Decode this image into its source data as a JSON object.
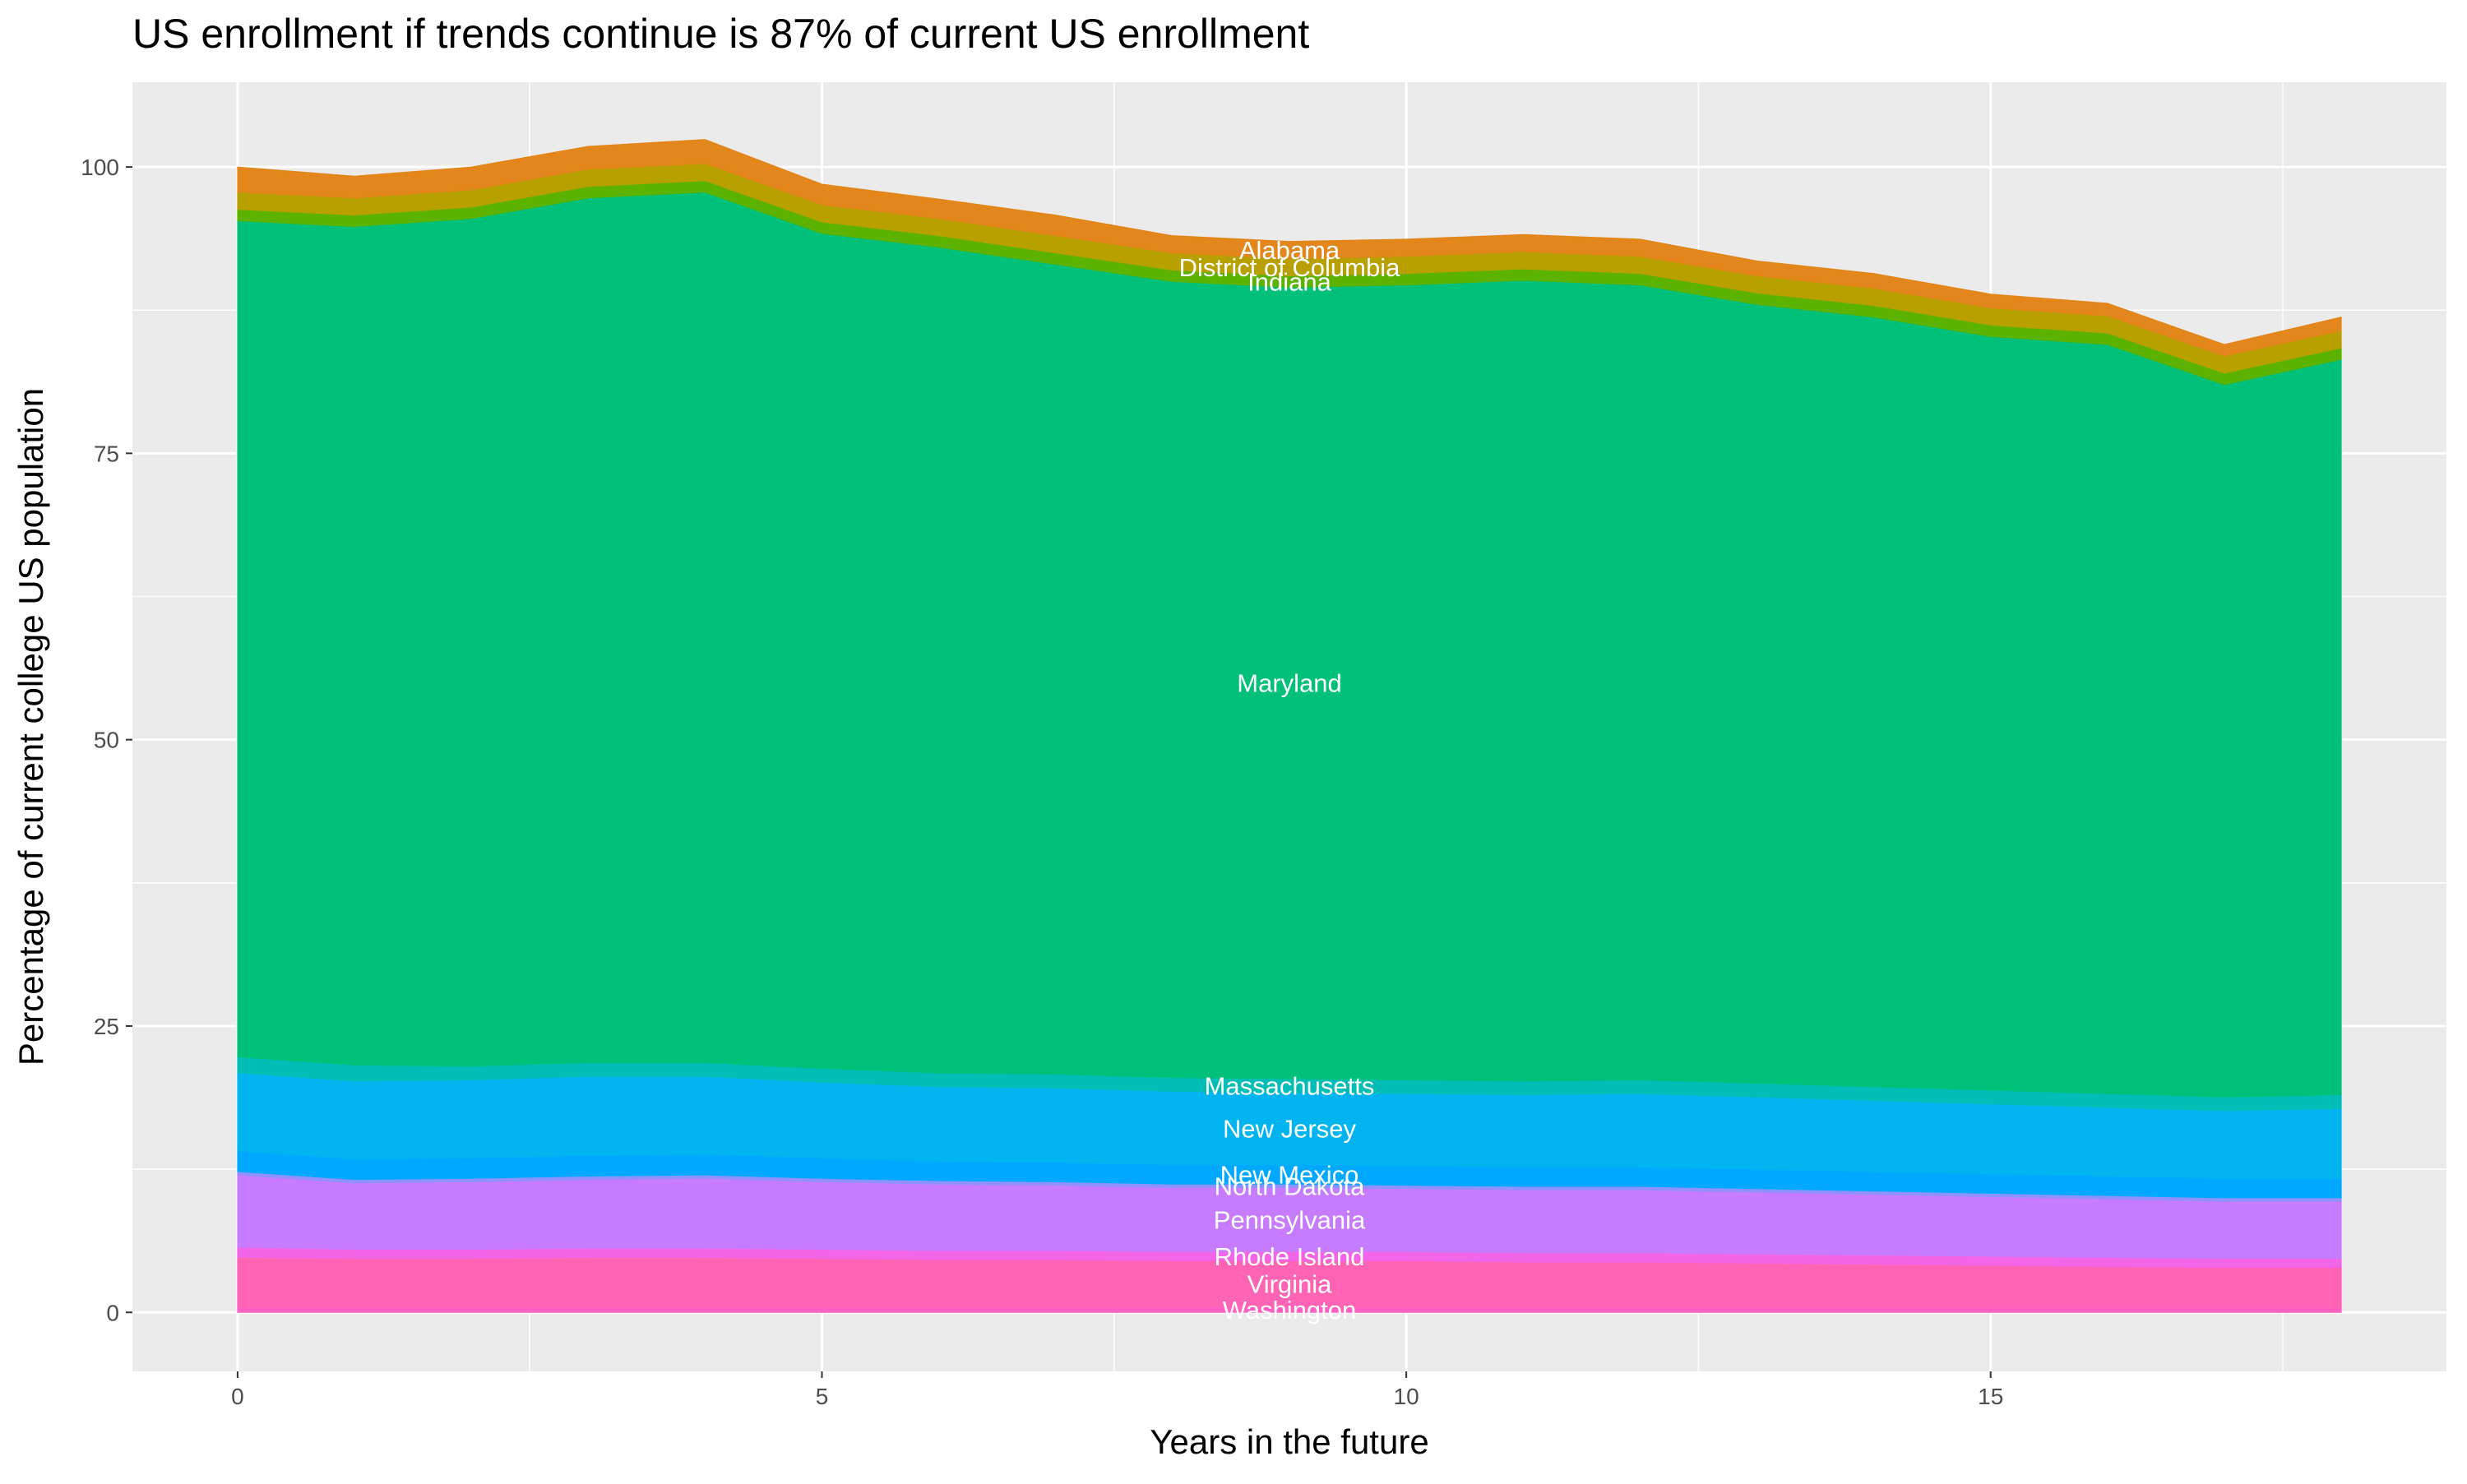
{
  "chart_data": {
    "type": "stacked_area",
    "title": "US enrollment if trends continue is 87% of current US enrollment",
    "x_label": "Years in the future",
    "y_label": "Percentage of current college US population",
    "x": [
      0,
      1,
      2,
      3,
      4,
      5,
      6,
      7,
      8,
      9,
      10,
      11,
      12,
      13,
      14,
      15,
      16,
      17,
      18
    ],
    "xlim": [
      -0.9,
      18.9
    ],
    "xticks": [
      0,
      5,
      10,
      15
    ],
    "ylim": [
      -5.15,
      107.4
    ],
    "yticks": [
      0,
      25,
      50,
      75,
      100
    ],
    "grid": true,
    "label_x": 9,
    "series": [
      {
        "name": "Washington",
        "color": "#ff61c3",
        "values": [
          0.5,
          0.5,
          0.5,
          0.5,
          0.5,
          0.5,
          0.5,
          0.5,
          0.5,
          0.5,
          0.5,
          0.5,
          0.5,
          0.5,
          0.5,
          0.4,
          0.4,
          0.4,
          0.4
        ]
      },
      {
        "name": "Virginia",
        "color": "#ff64b4",
        "values": [
          4.3,
          4.2,
          4.2,
          4.3,
          4.3,
          4.2,
          4.1,
          4.1,
          4.0,
          4.0,
          4.0,
          3.9,
          3.9,
          3.8,
          3.7,
          3.7,
          3.6,
          3.5,
          3.5
        ]
      },
      {
        "name": "Rhode Island",
        "color": "#f265e7",
        "values": [
          0.9,
          0.8,
          0.8,
          0.8,
          0.8,
          0.8,
          0.8,
          0.8,
          0.8,
          0.8,
          0.8,
          0.8,
          0.8,
          0.8,
          0.8,
          0.8,
          0.8,
          0.8,
          0.8
        ]
      },
      {
        "name": "Pennsylvania",
        "color": "#c77cff",
        "values": [
          6.3,
          5.8,
          5.9,
          6.0,
          6.1,
          5.9,
          5.8,
          5.7,
          5.6,
          5.6,
          5.5,
          5.5,
          5.5,
          5.4,
          5.3,
          5.2,
          5.1,
          5.0,
          5.0
        ]
      },
      {
        "name": "North Dakota",
        "color": "#8f91ff",
        "values": [
          0.3,
          0.3,
          0.3,
          0.3,
          0.3,
          0.3,
          0.3,
          0.3,
          0.3,
          0.3,
          0.3,
          0.3,
          0.3,
          0.3,
          0.3,
          0.3,
          0.3,
          0.3,
          0.3
        ]
      },
      {
        "name": "New Mexico",
        "color": "#00a9ff",
        "values": [
          1.8,
          1.8,
          1.8,
          1.8,
          1.8,
          1.8,
          1.7,
          1.7,
          1.7,
          1.7,
          1.7,
          1.7,
          1.7,
          1.7,
          1.7,
          1.7,
          1.7,
          1.7,
          1.7
        ]
      },
      {
        "name": "New Jersey",
        "color": "#00b4f0",
        "values": [
          6.8,
          6.8,
          6.8,
          6.9,
          6.8,
          6.6,
          6.5,
          6.5,
          6.4,
          6.3,
          6.3,
          6.3,
          6.4,
          6.3,
          6.2,
          6.1,
          6.0,
          5.9,
          6.1
        ]
      },
      {
        "name": "Massachusetts",
        "color": "#00bdb6",
        "values": [
          1.4,
          1.4,
          1.2,
          1.2,
          1.2,
          1.2,
          1.2,
          1.2,
          1.2,
          1.2,
          1.2,
          1.2,
          1.2,
          1.2,
          1.2,
          1.2,
          1.2,
          1.2,
          1.2
        ]
      },
      {
        "name": "Maryland",
        "color": "#00c07a",
        "values": [
          73.0,
          73.2,
          74.0,
          75.5,
          76.0,
          72.9,
          72.1,
          70.7,
          69.5,
          69.1,
          69.4,
          69.9,
          69.4,
          68.0,
          67.2,
          65.8,
          65.4,
          62.2,
          64.2
        ]
      },
      {
        "name": "Indiana",
        "color": "#5bb300",
        "values": [
          1.0,
          1.0,
          1.0,
          1.0,
          1.0,
          1.0,
          1.0,
          1.0,
          1.0,
          1.0,
          1.0,
          1.0,
          1.0,
          1.0,
          1.0,
          1.0,
          1.0,
          1.0,
          1.0
        ]
      },
      {
        "name": "District of Columbia",
        "color": "#b7a000",
        "values": [
          1.5,
          1.5,
          1.5,
          1.5,
          1.5,
          1.5,
          1.5,
          1.5,
          1.5,
          1.5,
          1.5,
          1.5,
          1.5,
          1.5,
          1.5,
          1.5,
          1.5,
          1.5,
          1.5
        ]
      },
      {
        "name": "Alabama",
        "color": "#e3861b",
        "values": [
          2.2,
          1.9,
          2.0,
          2.0,
          2.1,
          1.8,
          1.7,
          1.8,
          1.5,
          1.5,
          1.5,
          1.5,
          1.5,
          1.3,
          1.3,
          1.2,
          1.1,
          1.0,
          1.2
        ]
      }
    ]
  }
}
